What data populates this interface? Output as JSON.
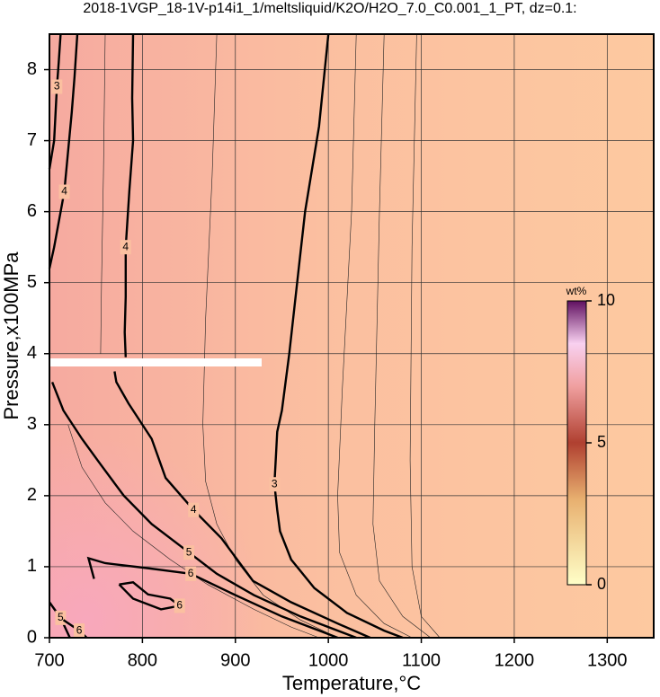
{
  "chart_data": {
    "type": "contour",
    "title": "2018-1VGP_18-1V-p14i1_1/meltsliquid/K2O/H2O_7.0_C0.001_1_PT, dz=0.1:",
    "x_label": "Temperature,°C",
    "y_label": "Pressure,x100MPa",
    "xlim": [
      700,
      1350
    ],
    "ylim": [
      0,
      8.5
    ],
    "xticks": [
      700,
      800,
      900,
      1000,
      1100,
      1200,
      1300
    ],
    "yticks": [
      0,
      1,
      2,
      3,
      4,
      5,
      6,
      7,
      8
    ],
    "grid": true,
    "contours": [
      {
        "level": 3,
        "x": [
          1000,
          990,
          975,
          969,
          958,
          950,
          945,
          942,
          945,
          948,
          960,
          985,
          1020,
          1060,
          1080
        ],
        "y": [
          8.5,
          7.2,
          6.0,
          5.3,
          4.0,
          3.2,
          2.9,
          2.16,
          1.8,
          1.5,
          1.1,
          0.7,
          0.35,
          0.1,
          0
        ]
      },
      {
        "level": 4,
        "x": [
          790,
          789,
          790,
          786,
          782,
          782,
          781,
          782
        ],
        "y": [
          8.5,
          7.6,
          7.0,
          6.3,
          5.5,
          4.8,
          4.3,
          3.95
        ]
      },
      {
        "level": 4,
        "x": [
          770,
          772,
          785,
          810,
          825,
          855,
          885,
          919,
          960,
          1010,
          1045
        ],
        "y": [
          3.75,
          3.6,
          3.3,
          2.8,
          2.25,
          1.8,
          1.4,
          0.8,
          0.5,
          0.2,
          0
        ]
      },
      {
        "level": 5,
        "x": [
          703,
          715,
          735,
          755,
          780,
          810,
          850,
          880,
          920,
          970,
          1020,
          1030
        ],
        "y": [
          3.6,
          3.2,
          2.8,
          2.44,
          2.0,
          1.6,
          1.2,
          0.9,
          0.6,
          0.3,
          0.05,
          0
        ]
      },
      {
        "level": 6,
        "x": [
          748,
          742,
          760,
          805,
          852,
          900,
          950,
          1000,
          1010
        ],
        "y": [
          0.83,
          1.12,
          1.05,
          0.98,
          0.9,
          0.6,
          0.3,
          0.05,
          0
        ]
      },
      {
        "level": 6,
        "x": [
          775,
          790,
          806,
          830,
          840,
          820,
          790,
          775
        ],
        "y": [
          0.75,
          0.78,
          0.61,
          0.55,
          0.45,
          0.4,
          0.55,
          0.75
        ]
      },
      {
        "level": 3,
        "x": [
          712,
          710,
          708,
          705,
          700
        ],
        "y": [
          8.5,
          8.1,
          7.76,
          7.0,
          6.6
        ]
      },
      {
        "level": 4,
        "x": [
          730,
          727,
          724,
          716,
          705,
          700
        ],
        "y": [
          8.5,
          7.9,
          7.4,
          6.28,
          5.5,
          5.2
        ]
      },
      {
        "level": 5,
        "x": [
          700,
          712,
          722
        ],
        "y": [
          0.5,
          0.28,
          0
        ]
      },
      {
        "level": 6,
        "x": [
          715,
          732,
          740
        ],
        "y": [
          0.25,
          0.1,
          0
        ]
      }
    ],
    "minor_contours": [
      {
        "level": 3.5,
        "x": [
          880,
          875,
          868,
          865,
          868,
          880,
          900,
          930,
          970,
          1010
        ],
        "y": [
          8.5,
          6.5,
          4.5,
          3.0,
          2.2,
          1.6,
          1.1,
          0.6,
          0.25,
          0
        ]
      },
      {
        "level": 2.9,
        "x": [
          1030,
          1025,
          1015,
          1010,
          1012,
          1030,
          1060,
          1090
        ],
        "y": [
          8.5,
          6.0,
          3.5,
          2.0,
          1.2,
          0.6,
          0.2,
          0
        ]
      },
      {
        "level": 2.8,
        "x": [
          1060,
          1055,
          1050,
          1048,
          1055,
          1080,
          1110
        ],
        "y": [
          8.5,
          6.0,
          3.0,
          1.6,
          0.8,
          0.3,
          0
        ]
      },
      {
        "level": 2.7,
        "x": [
          1095,
          1090,
          1088,
          1090,
          1100,
          1120
        ],
        "y": [
          8.5,
          5.5,
          2.5,
          1.0,
          0.3,
          0
        ]
      },
      {
        "level": 4.5,
        "x": [
          760,
          758,
          756,
          755
        ],
        "y": [
          8.5,
          6.5,
          5.0,
          4.0
        ]
      },
      {
        "level": 5.5,
        "x": [
          720,
          735,
          760,
          790,
          830,
          870,
          920,
          960,
          990
        ],
        "y": [
          3.0,
          2.4,
          1.9,
          1.5,
          1.1,
          0.75,
          0.4,
          0.15,
          0
        ]
      }
    ],
    "colorbar": {
      "label": "wt%",
      "lim": [
        0,
        10
      ],
      "ticks": [
        0,
        5,
        10
      ]
    }
  }
}
